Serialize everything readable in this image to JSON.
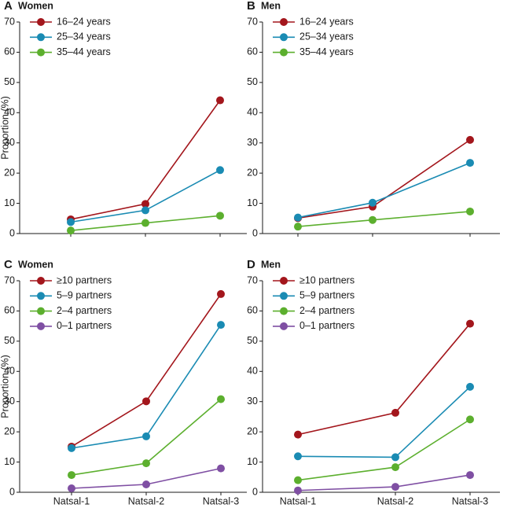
{
  "colors": {
    "red": "#a3161c",
    "blue": "#1a8bb3",
    "green": "#5caf2e",
    "purple": "#7f4fa3",
    "axis": "#1a1a1a"
  },
  "chart_data": [
    {
      "type": "line",
      "letter": "A",
      "title": "Women",
      "ylabel": "Proportion (%)",
      "xlabel": "",
      "ylim": [
        0,
        70
      ],
      "yticks": [
        0,
        10,
        20,
        30,
        40,
        50,
        60,
        70
      ],
      "categories": [
        "Natsal-1",
        "Natsal-2",
        "Natsal-3"
      ],
      "show_xticks": false,
      "series": [
        {
          "name": "16–24 years",
          "color": "red",
          "values": [
            4.7,
            9.8,
            44.1
          ]
        },
        {
          "name": "25–34 years",
          "color": "blue",
          "values": [
            3.8,
            7.7,
            21.0
          ]
        },
        {
          "name": "35–44 years",
          "color": "green",
          "values": [
            1.0,
            3.5,
            5.9
          ]
        }
      ]
    },
    {
      "type": "line",
      "letter": "B",
      "title": "Men",
      "ylabel": "",
      "xlabel": "",
      "ylim": [
        0,
        70
      ],
      "yticks": [
        0,
        10,
        20,
        30,
        40,
        50,
        60,
        70
      ],
      "categories": [
        "Natsal-1",
        "Natsal-2",
        "Natsal-3"
      ],
      "show_xticks": false,
      "series": [
        {
          "name": "16–24 years",
          "color": "red",
          "values": [
            5.1,
            8.9,
            31.0
          ]
        },
        {
          "name": "25–34 years",
          "color": "blue",
          "values": [
            5.3,
            10.2,
            23.4
          ]
        },
        {
          "name": "35–44 years",
          "color": "green",
          "values": [
            2.3,
            4.5,
            7.3
          ]
        }
      ]
    },
    {
      "type": "line",
      "letter": "C",
      "title": "Women",
      "ylabel": "Proportion (%)",
      "xlabel": "",
      "ylim": [
        0,
        70
      ],
      "yticks": [
        0,
        10,
        20,
        30,
        40,
        50,
        60,
        70
      ],
      "categories": [
        "Natsal-1",
        "Natsal-2",
        "Natsal-3"
      ],
      "show_xticks": true,
      "series": [
        {
          "name": "≥10 partners",
          "color": "red",
          "values": [
            15.1,
            30.1,
            65.6
          ]
        },
        {
          "name": "5–9 partners",
          "color": "blue",
          "values": [
            14.6,
            18.5,
            55.4
          ]
        },
        {
          "name": "2–4 partners",
          "color": "green",
          "values": [
            5.7,
            9.6,
            30.8
          ]
        },
        {
          "name": "0–1 partners",
          "color": "purple",
          "values": [
            1.3,
            2.6,
            7.9
          ]
        }
      ]
    },
    {
      "type": "line",
      "letter": "D",
      "title": "Men",
      "ylabel": "",
      "xlabel": "",
      "ylim": [
        0,
        70
      ],
      "yticks": [
        0,
        10,
        20,
        30,
        40,
        50,
        60,
        70
      ],
      "categories": [
        "Natsal-1",
        "Natsal-2",
        "Natsal-3"
      ],
      "show_xticks": true,
      "series": [
        {
          "name": "≥10 partners",
          "color": "red",
          "values": [
            19.1,
            26.3,
            55.8
          ]
        },
        {
          "name": "5–9 partners",
          "color": "blue",
          "values": [
            11.9,
            11.6,
            34.9
          ]
        },
        {
          "name": "2–4 partners",
          "color": "green",
          "values": [
            4.0,
            8.3,
            24.1
          ]
        },
        {
          "name": "0–1 partners",
          "color": "purple",
          "values": [
            0.6,
            1.8,
            5.7
          ]
        }
      ]
    }
  ]
}
